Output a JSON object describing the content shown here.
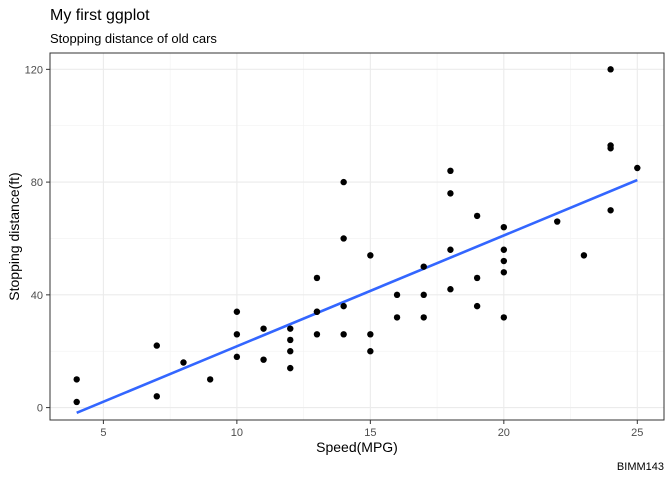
{
  "header": {
    "title": "My first ggplot",
    "subtitle": "Stopping distance of old cars"
  },
  "footer": {
    "caption": "BIMM143"
  },
  "chart_data": {
    "type": "scatter",
    "title": "My first ggplot",
    "subtitle": "Stopping distance of old cars",
    "xlabel": "Speed(MPG)",
    "ylabel": "Stopping distance(ft)",
    "caption": "BIMM143",
    "xlim": [
      3.0,
      26.0
    ],
    "ylim": [
      -4.4,
      125.8
    ],
    "x_ticks": [
      5,
      10,
      15,
      20,
      25
    ],
    "y_ticks": [
      0,
      40,
      80,
      120
    ],
    "grid": true,
    "theme": "bw",
    "point_color": "#000000",
    "series": [
      {
        "x": [
          4,
          4,
          7,
          7,
          8,
          9,
          10,
          10,
          10,
          11,
          11,
          12,
          12,
          12,
          12,
          13,
          13,
          13,
          13,
          14,
          14,
          14,
          14,
          15,
          15,
          15,
          16,
          16,
          17,
          17,
          17,
          18,
          18,
          18,
          18,
          19,
          19,
          19,
          20,
          20,
          20,
          20,
          20,
          22,
          23,
          24,
          24,
          24,
          24,
          25
        ],
        "y": [
          2,
          10,
          4,
          22,
          16,
          10,
          18,
          26,
          34,
          17,
          28,
          14,
          20,
          24,
          28,
          26,
          34,
          34,
          46,
          26,
          36,
          60,
          80,
          20,
          26,
          54,
          32,
          40,
          32,
          40,
          50,
          42,
          56,
          76,
          84,
          36,
          46,
          68,
          32,
          48,
          52,
          56,
          64,
          66,
          54,
          70,
          92,
          93,
          120,
          85
        ]
      }
    ],
    "trend_line": {
      "method": "lm",
      "color": "#3366FF",
      "x": [
        4,
        25
      ],
      "y": [
        -1.85,
        80.73
      ]
    }
  }
}
